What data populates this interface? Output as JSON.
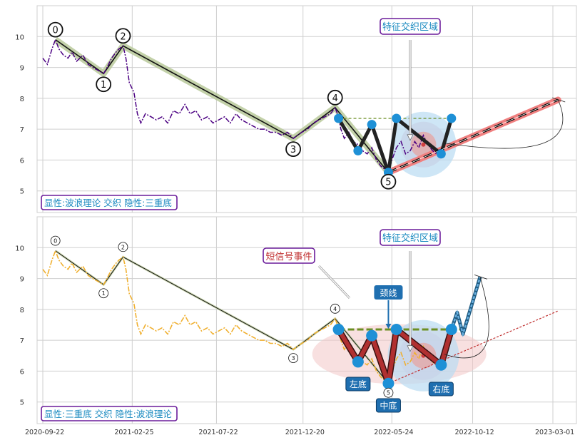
{
  "colors": {
    "grid": "#cfcfcf",
    "top_price": "#4b0082",
    "bottom_price": "#f0b030",
    "wave_band": "#b8c99a",
    "wave_line": "#111111",
    "pattern_node": "#1e90d6",
    "pattern_thick": "#222222",
    "pattern_red": "#b03030",
    "neckline": "#6b8e23",
    "projection": "#f08080",
    "big_ellipse": "#f2c6c6",
    "circle_outer": "#b9dbf2",
    "circle_mid": "#c8d4e8",
    "circle_inner": "#e3aaaa",
    "label_box_border": "#6a1b9a",
    "label_text": "#1a8ac0",
    "tag_fill": "#1f6fb0",
    "signal_text": "#c03030"
  },
  "chart_data": [
    {
      "type": "line",
      "panel": "top",
      "ylim": [
        4.3,
        11.0
      ],
      "yticks": [
        5,
        6,
        7,
        8,
        9,
        10
      ],
      "x_tick_labels": [
        "2020-09-22",
        "2021-02-25",
        "2021-07-22",
        "2021-12-20",
        "2022-05-24",
        "2022-10-12",
        "2023-03-01"
      ],
      "series": [
        {
          "style": "dashdot",
          "points": [
            [
              "2020-09-22",
              9.3
            ],
            [
              "2020-09-30",
              9.1
            ],
            [
              "2020-10-08",
              9.6
            ],
            [
              "2020-10-14",
              9.9
            ],
            [
              "2020-10-20",
              9.6
            ],
            [
              "2020-10-28",
              9.4
            ],
            [
              "2020-11-05",
              9.3
            ],
            [
              "2020-11-12",
              9.5
            ],
            [
              "2020-11-20",
              9.2
            ],
            [
              "2020-12-01",
              9.4
            ],
            [
              "2020-12-10",
              9.1
            ],
            [
              "2020-12-18",
              9.0
            ],
            [
              "2020-12-28",
              8.9
            ],
            [
              "2021-01-06",
              8.8
            ],
            [
              "2021-01-12",
              9.0
            ],
            [
              "2021-01-20",
              9.3
            ],
            [
              "2021-01-28",
              9.5
            ],
            [
              "2021-02-02",
              9.6
            ],
            [
              "2021-02-09",
              9.7
            ],
            [
              "2021-02-14",
              9.3
            ],
            [
              "2021-02-20",
              8.5
            ],
            [
              "2021-02-28",
              8.2
            ],
            [
              "2021-03-06",
              7.5
            ],
            [
              "2021-03-12",
              7.2
            ],
            [
              "2021-03-20",
              7.5
            ],
            [
              "2021-03-30",
              7.4
            ],
            [
              "2021-04-08",
              7.3
            ],
            [
              "2021-04-18",
              7.4
            ],
            [
              "2021-04-28",
              7.2
            ],
            [
              "2021-05-08",
              7.6
            ],
            [
              "2021-05-18",
              7.5
            ],
            [
              "2021-05-28",
              7.8
            ],
            [
              "2021-06-06",
              7.5
            ],
            [
              "2021-06-16",
              7.6
            ],
            [
              "2021-06-26",
              7.3
            ],
            [
              "2021-07-06",
              7.4
            ],
            [
              "2021-07-16",
              7.2
            ],
            [
              "2021-07-26",
              7.3
            ],
            [
              "2021-08-05",
              7.4
            ],
            [
              "2021-08-15",
              7.2
            ],
            [
              "2021-08-25",
              7.5
            ],
            [
              "2021-09-04",
              7.3
            ],
            [
              "2021-09-14",
              7.2
            ],
            [
              "2021-09-24",
              7.1
            ],
            [
              "2021-10-04",
              7.0
            ],
            [
              "2021-10-14",
              7.0
            ],
            [
              "2021-10-24",
              6.9
            ],
            [
              "2021-11-03",
              6.9
            ],
            [
              "2021-11-13",
              6.8
            ],
            [
              "2021-11-23",
              6.9
            ],
            [
              "2021-12-03",
              6.7
            ],
            [
              "2021-12-10",
              6.8
            ],
            [
              "2021-12-18",
              6.9
            ],
            [
              "2021-12-28",
              7.0
            ],
            [
              "2022-01-07",
              7.2
            ],
            [
              "2022-01-17",
              7.3
            ],
            [
              "2022-01-27",
              7.4
            ],
            [
              "2022-02-06",
              7.5
            ],
            [
              "2022-02-14",
              7.7
            ],
            [
              "2022-02-20",
              7.4
            ],
            [
              "2022-02-24",
              7.0
            ],
            [
              "2022-03-02",
              6.7
            ],
            [
              "2022-03-10",
              6.9
            ],
            [
              "2022-03-18",
              6.6
            ],
            [
              "2022-03-26",
              6.5
            ],
            [
              "2022-04-03",
              6.3
            ],
            [
              "2022-04-11",
              6.2
            ],
            [
              "2022-04-19",
              6.4
            ],
            [
              "2022-04-27",
              6.0
            ],
            [
              "2022-05-05",
              5.8
            ],
            [
              "2022-05-12",
              5.7
            ],
            [
              "2022-05-18",
              5.6
            ],
            [
              "2022-05-24",
              6.0
            ],
            [
              "2022-06-01",
              6.4
            ],
            [
              "2022-06-09",
              6.6
            ],
            [
              "2022-06-17",
              6.2
            ],
            [
              "2022-06-25",
              6.3
            ],
            [
              "2022-07-03",
              6.6
            ],
            [
              "2022-07-10",
              6.4
            ],
            [
              "2022-07-18",
              6.8
            ],
            [
              "2022-07-26",
              6.5
            ],
            [
              "2022-08-03",
              6.3
            ],
            [
              "2022-08-10",
              6.2
            ],
            [
              "2022-08-18",
              6.2
            ],
            [
              "2022-08-26",
              6.3
            ]
          ]
        }
      ],
      "wave": [
        [
          "2020-10-14",
          9.9
        ],
        [
          "2021-01-06",
          8.8
        ],
        [
          "2021-02-09",
          9.7
        ],
        [
          "2021-12-03",
          6.7
        ],
        [
          "2022-02-14",
          7.7
        ],
        [
          "2022-05-18",
          5.6
        ]
      ],
      "wave_labels": [
        "0",
        "1",
        "2",
        "3",
        "4",
        "5"
      ],
      "pattern": [
        [
          "2022-02-20",
          7.35
        ],
        [
          "2022-03-26",
          6.3
        ],
        [
          "2022-04-19",
          7.15
        ],
        [
          "2022-05-18",
          5.6
        ],
        [
          "2022-06-01",
          7.35
        ],
        [
          "2022-08-18",
          6.2
        ],
        [
          "2022-09-05",
          7.35
        ]
      ],
      "neckline": {
        "from": "2022-02-20",
        "to": "2022-09-05",
        "y": 7.35
      },
      "projection": {
        "from": [
          "2022-05-18",
          5.6
        ],
        "to": [
          "2023-03-10",
          7.95
        ]
      },
      "annotations": [
        "特征交织区域"
      ],
      "caption": "显性:波浪理论 交织 隐性:三重底"
    },
    {
      "type": "line",
      "panel": "bottom",
      "ylim": [
        4.3,
        11.0
      ],
      "yticks": [
        5,
        6,
        7,
        8,
        9,
        10
      ],
      "series": [
        {
          "style": "dashdot",
          "points": [
            [
              "2020-09-22",
              9.3
            ],
            [
              "2020-09-30",
              9.1
            ],
            [
              "2020-10-08",
              9.6
            ],
            [
              "2020-10-14",
              9.9
            ],
            [
              "2020-10-20",
              9.6
            ],
            [
              "2020-10-28",
              9.4
            ],
            [
              "2020-11-05",
              9.3
            ],
            [
              "2020-11-12",
              9.5
            ],
            [
              "2020-11-20",
              9.2
            ],
            [
              "2020-12-01",
              9.4
            ],
            [
              "2020-12-10",
              9.1
            ],
            [
              "2020-12-18",
              9.0
            ],
            [
              "2020-12-28",
              8.9
            ],
            [
              "2021-01-06",
              8.8
            ],
            [
              "2021-01-12",
              9.0
            ],
            [
              "2021-01-20",
              9.3
            ],
            [
              "2021-01-28",
              9.5
            ],
            [
              "2021-02-02",
              9.6
            ],
            [
              "2021-02-09",
              9.7
            ],
            [
              "2021-02-14",
              9.3
            ],
            [
              "2021-02-20",
              8.5
            ],
            [
              "2021-02-28",
              8.2
            ],
            [
              "2021-03-06",
              7.5
            ],
            [
              "2021-03-12",
              7.2
            ],
            [
              "2021-03-20",
              7.5
            ],
            [
              "2021-03-30",
              7.4
            ],
            [
              "2021-04-08",
              7.3
            ],
            [
              "2021-04-18",
              7.4
            ],
            [
              "2021-04-28",
              7.2
            ],
            [
              "2021-05-08",
              7.6
            ],
            [
              "2021-05-18",
              7.5
            ],
            [
              "2021-05-28",
              7.8
            ],
            [
              "2021-06-06",
              7.5
            ],
            [
              "2021-06-16",
              7.6
            ],
            [
              "2021-06-26",
              7.3
            ],
            [
              "2021-07-06",
              7.4
            ],
            [
              "2021-07-16",
              7.2
            ],
            [
              "2021-07-26",
              7.3
            ],
            [
              "2021-08-05",
              7.4
            ],
            [
              "2021-08-15",
              7.2
            ],
            [
              "2021-08-25",
              7.5
            ],
            [
              "2021-09-04",
              7.3
            ],
            [
              "2021-09-14",
              7.2
            ],
            [
              "2021-09-24",
              7.1
            ],
            [
              "2021-10-04",
              7.0
            ],
            [
              "2021-10-14",
              7.0
            ],
            [
              "2021-10-24",
              6.9
            ],
            [
              "2021-11-03",
              6.9
            ],
            [
              "2021-11-13",
              6.8
            ],
            [
              "2021-11-23",
              6.9
            ],
            [
              "2021-12-03",
              6.7
            ],
            [
              "2021-12-10",
              6.8
            ],
            [
              "2021-12-18",
              6.9
            ],
            [
              "2021-12-28",
              7.0
            ],
            [
              "2022-01-07",
              7.2
            ],
            [
              "2022-01-17",
              7.3
            ],
            [
              "2022-01-27",
              7.4
            ],
            [
              "2022-02-06",
              7.5
            ],
            [
              "2022-02-14",
              7.7
            ],
            [
              "2022-02-20",
              7.4
            ],
            [
              "2022-02-24",
              7.0
            ],
            [
              "2022-03-02",
              6.7
            ],
            [
              "2022-03-10",
              6.9
            ],
            [
              "2022-03-18",
              6.6
            ],
            [
              "2022-03-26",
              6.5
            ],
            [
              "2022-04-03",
              6.3
            ],
            [
              "2022-04-11",
              6.2
            ],
            [
              "2022-04-19",
              6.4
            ],
            [
              "2022-04-27",
              6.0
            ],
            [
              "2022-05-05",
              5.8
            ],
            [
              "2022-05-12",
              5.7
            ],
            [
              "2022-05-18",
              5.6
            ],
            [
              "2022-05-24",
              6.0
            ],
            [
              "2022-06-01",
              6.4
            ],
            [
              "2022-06-09",
              6.6
            ],
            [
              "2022-06-17",
              6.2
            ],
            [
              "2022-06-25",
              6.3
            ],
            [
              "2022-07-03",
              6.6
            ],
            [
              "2022-07-10",
              6.4
            ],
            [
              "2022-07-18",
              6.8
            ],
            [
              "2022-07-26",
              6.5
            ],
            [
              "2022-08-03",
              6.3
            ],
            [
              "2022-08-10",
              6.2
            ],
            [
              "2022-08-18",
              6.2
            ],
            [
              "2022-08-26",
              6.3
            ]
          ]
        }
      ],
      "wave": [
        [
          "2020-10-14",
          9.9
        ],
        [
          "2021-01-06",
          8.8
        ],
        [
          "2021-02-09",
          9.7
        ],
        [
          "2021-12-03",
          6.7
        ],
        [
          "2022-02-14",
          7.7
        ],
        [
          "2022-05-18",
          5.6
        ]
      ],
      "wave_labels": [
        "0",
        "1",
        "2",
        "3",
        "4",
        "5"
      ],
      "pattern": [
        [
          "2022-02-20",
          7.35
        ],
        [
          "2022-03-26",
          6.3
        ],
        [
          "2022-04-19",
          7.15
        ],
        [
          "2022-05-18",
          5.6
        ],
        [
          "2022-06-01",
          7.35
        ],
        [
          "2022-08-18",
          6.2
        ],
        [
          "2022-09-05",
          7.35
        ]
      ],
      "breakout": [
        [
          "2022-09-05",
          7.35
        ],
        [
          "2022-09-15",
          7.9
        ],
        [
          "2022-09-25",
          7.2
        ],
        [
          "2022-10-25",
          9.05
        ]
      ],
      "neckline": {
        "from": "2022-02-20",
        "to": "2022-09-20",
        "y": 7.35
      },
      "projection": {
        "from": [
          "2022-05-18",
          5.6
        ],
        "to": [
          "2023-03-10",
          7.95
        ]
      },
      "annotations": [
        "特征交织区域",
        "短信号事件",
        "颈线",
        "左底",
        "中底",
        "右底"
      ],
      "caption": "显性:三重底 交织 隐性:波浪理论"
    }
  ]
}
